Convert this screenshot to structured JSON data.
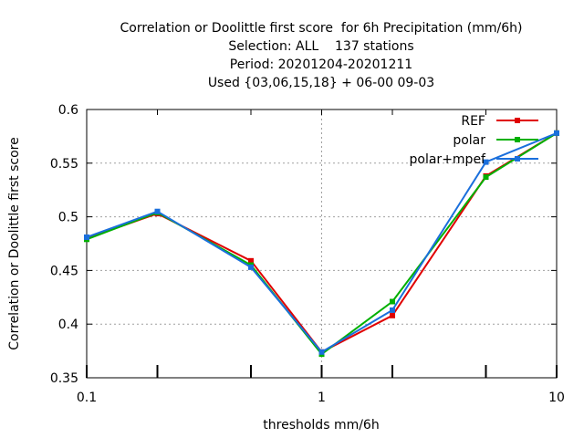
{
  "title_lines": [
    "Correlation or Doolittle first score  for 6h Precipitation (mm/6h)",
    "Selection: ALL    137 stations",
    "Period: 20201204-20201211",
    "Used {03,06,15,18} + 06-00 09-03"
  ],
  "chart_data": {
    "type": "line",
    "title": "Correlation or Doolittle first score  for 6h Precipitation (mm/6h)",
    "xlabel": "thresholds mm/6h",
    "ylabel": "Correlation or Doolittle first score",
    "xscale": "log",
    "xlim": [
      0.1,
      10
    ],
    "ylim": [
      0.35,
      0.6
    ],
    "xticks": [
      0.1,
      1,
      10
    ],
    "xtick_labels": [
      "0.1",
      "1",
      "10"
    ],
    "yticks": [
      0.35,
      0.4,
      0.45,
      0.5,
      0.55,
      0.6
    ],
    "ytick_labels": [
      "0.35",
      "0.4",
      "0.45",
      "0.5",
      "0.55",
      "0.6"
    ],
    "grid": true,
    "legend_position": "top-right",
    "x": [
      0.1,
      0.2,
      0.5,
      1,
      2,
      5,
      10
    ],
    "series": [
      {
        "name": "REF",
        "color": "#e00000",
        "values": [
          0.48,
          0.503,
          0.459,
          0.374,
          0.408,
          0.538,
          0.578
        ]
      },
      {
        "name": "polar",
        "color": "#00b000",
        "values": [
          0.479,
          0.504,
          0.455,
          0.372,
          0.421,
          0.537,
          0.578
        ]
      },
      {
        "name": "polar+mpef",
        "color": "#1a6fdc",
        "values": [
          0.481,
          0.505,
          0.453,
          0.374,
          0.413,
          0.551,
          0.578
        ]
      }
    ]
  }
}
